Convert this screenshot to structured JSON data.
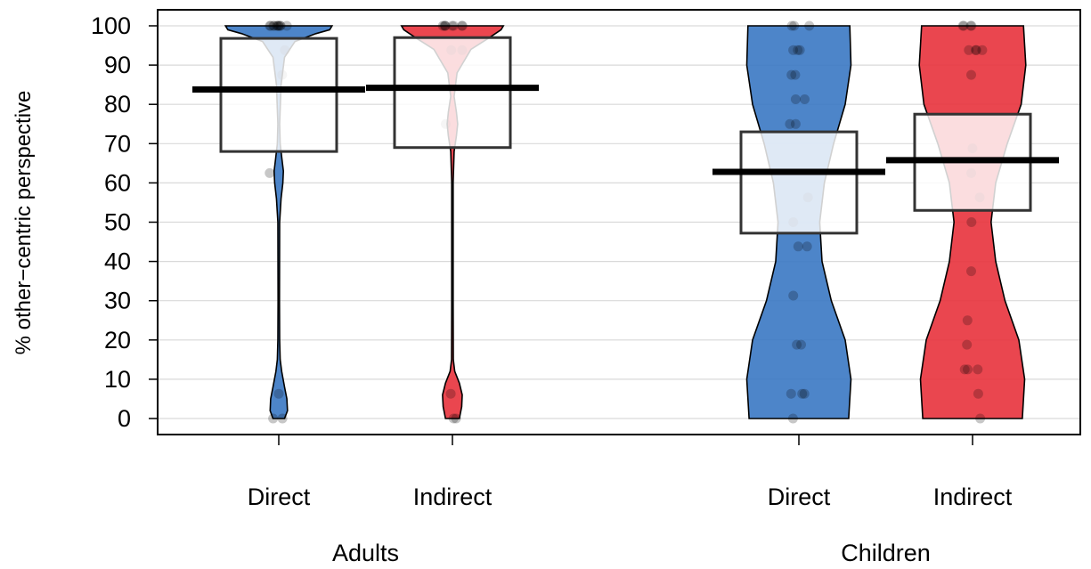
{
  "chart_data": {
    "type": "pirate",
    "title": "",
    "ylabel": "% other−centric perspective",
    "xlabel": "",
    "ylim": [
      0,
      100
    ],
    "yticks": [
      0,
      10,
      20,
      30,
      40,
      50,
      60,
      70,
      80,
      90,
      100
    ],
    "grid": true,
    "groups": [
      {
        "name": "Adults",
        "conditions": [
          "Direct",
          "Indirect"
        ]
      },
      {
        "name": "Children",
        "conditions": [
          "Direct",
          "Indirect"
        ]
      }
    ],
    "series": [
      {
        "group": "Adults",
        "condition": "Direct",
        "color": "#3A78C3",
        "mean": 83.8,
        "ci_lower": 68.0,
        "ci_upper": 96.8,
        "density": [
          [
            0,
            0.05
          ],
          [
            2,
            0.075
          ],
          [
            5,
            0.07
          ],
          [
            8,
            0.05
          ],
          [
            12,
            0.025
          ],
          [
            15,
            0.012
          ],
          [
            20,
            0.008
          ],
          [
            30,
            0.006
          ],
          [
            50,
            0.008
          ],
          [
            56,
            0.02
          ],
          [
            60,
            0.035
          ],
          [
            63,
            0.04
          ],
          [
            66,
            0.028
          ],
          [
            70,
            0.012
          ],
          [
            75,
            0.008
          ],
          [
            85,
            0.02
          ],
          [
            92,
            0.05
          ],
          [
            96,
            0.14
          ],
          [
            98,
            0.32
          ],
          [
            99,
            0.44
          ],
          [
            100,
            0.46
          ]
        ],
        "points": [
          100,
          100,
          100,
          100,
          100,
          100,
          100,
          100,
          100,
          100,
          100,
          93.8,
          87.5,
          62.5,
          6.3,
          0,
          0
        ]
      },
      {
        "group": "Adults",
        "condition": "Indirect",
        "color": "#E8323C",
        "mean": 84.2,
        "ci_lower": 69.0,
        "ci_upper": 97.0,
        "density": [
          [
            0,
            0.06
          ],
          [
            3,
            0.08
          ],
          [
            6,
            0.085
          ],
          [
            9,
            0.06
          ],
          [
            12,
            0.02
          ],
          [
            15,
            0.008
          ],
          [
            30,
            0.006
          ],
          [
            60,
            0.006
          ],
          [
            68,
            0.015
          ],
          [
            72,
            0.035
          ],
          [
            75,
            0.045
          ],
          [
            78,
            0.035
          ],
          [
            82,
            0.015
          ],
          [
            88,
            0.04
          ],
          [
            94,
            0.16
          ],
          [
            97,
            0.32
          ],
          [
            99,
            0.42
          ],
          [
            100,
            0.44
          ]
        ],
        "points": [
          100,
          100,
          100,
          100,
          100,
          100,
          100,
          100,
          93.8,
          93.8,
          75,
          6.3,
          0,
          0
        ]
      },
      {
        "group": "Children",
        "condition": "Direct",
        "color": "#3A78C3",
        "mean": 62.8,
        "ci_lower": 47.2,
        "ci_upper": 73.0,
        "density": [
          [
            0,
            0.43
          ],
          [
            10,
            0.45
          ],
          [
            20,
            0.4
          ],
          [
            30,
            0.28
          ],
          [
            40,
            0.2
          ],
          [
            50,
            0.18
          ],
          [
            60,
            0.22
          ],
          [
            70,
            0.3
          ],
          [
            80,
            0.4
          ],
          [
            90,
            0.45
          ],
          [
            100,
            0.44
          ]
        ],
        "points": [
          100,
          100,
          100,
          93.8,
          93.8,
          93.8,
          87.5,
          87.5,
          81.3,
          81.3,
          75,
          75,
          56.3,
          50,
          43.8,
          43.8,
          31.3,
          18.8,
          18.8,
          6.3,
          6.3,
          6.3,
          0
        ]
      },
      {
        "group": "Children",
        "condition": "Indirect",
        "color": "#E8323C",
        "mean": 65.8,
        "ci_lower": 53.0,
        "ci_upper": 77.5,
        "density": [
          [
            0,
            0.43
          ],
          [
            10,
            0.45
          ],
          [
            20,
            0.4
          ],
          [
            30,
            0.28
          ],
          [
            40,
            0.2
          ],
          [
            50,
            0.16
          ],
          [
            60,
            0.2
          ],
          [
            70,
            0.3
          ],
          [
            80,
            0.42
          ],
          [
            90,
            0.46
          ],
          [
            100,
            0.44
          ]
        ],
        "points": [
          100,
          100,
          100,
          100,
          93.8,
          93.8,
          93.8,
          93.8,
          87.5,
          68.8,
          62.5,
          56.3,
          50,
          37.5,
          25,
          18.8,
          12.5,
          12.5,
          12.5,
          6.3,
          0
        ]
      }
    ]
  }
}
